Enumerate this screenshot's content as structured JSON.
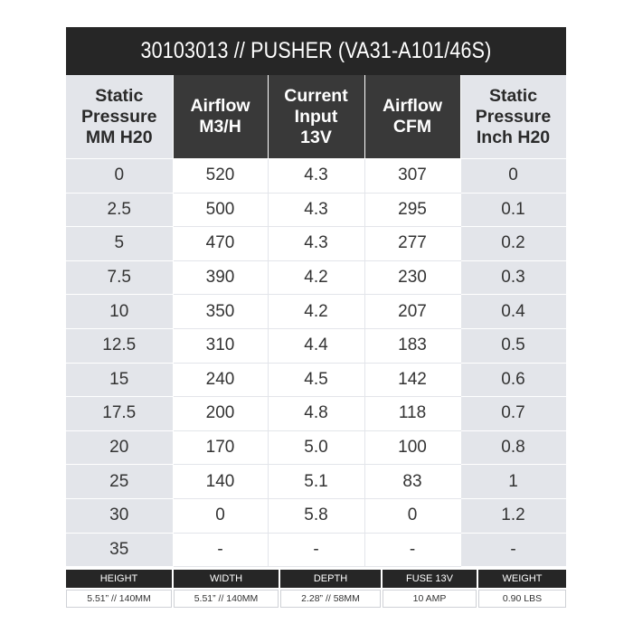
{
  "title": "30103013 // PUSHER (VA31-A101/46S)",
  "columns": [
    [
      "Static",
      "Pressure",
      "MM H20"
    ],
    [
      "Airflow",
      "M3/H"
    ],
    [
      "Current",
      "Input",
      "13V"
    ],
    [
      "Airflow",
      "CFM"
    ],
    [
      "Static",
      "Pressure",
      "Inch H20"
    ]
  ],
  "rows": [
    [
      "0",
      "520",
      "4.3",
      "307",
      "0"
    ],
    [
      "2.5",
      "500",
      "4.3",
      "295",
      "0.1"
    ],
    [
      "5",
      "470",
      "4.3",
      "277",
      "0.2"
    ],
    [
      "7.5",
      "390",
      "4.2",
      "230",
      "0.3"
    ],
    [
      "10",
      "350",
      "4.2",
      "207",
      "0.4"
    ],
    [
      "12.5",
      "310",
      "4.4",
      "183",
      "0.5"
    ],
    [
      "15",
      "240",
      "4.5",
      "142",
      "0.6"
    ],
    [
      "17.5",
      "200",
      "4.8",
      "118",
      "0.7"
    ],
    [
      "20",
      "170",
      "5.0",
      "100",
      "0.8"
    ],
    [
      "25",
      "140",
      "5.1",
      "83",
      "1"
    ],
    [
      "30",
      "0",
      "5.8",
      "0",
      "1.2"
    ],
    [
      "35",
      "-",
      "-",
      "-",
      "-"
    ]
  ],
  "specs": {
    "labels": [
      "HEIGHT",
      "WIDTH",
      "DEPTH",
      "FUSE 13V",
      "WEIGHT"
    ],
    "values": [
      "5.51” // 140MM",
      "5.51” // 140MM",
      "2.28” // 58MM",
      "10 AMP",
      "0.90 LBS"
    ]
  }
}
